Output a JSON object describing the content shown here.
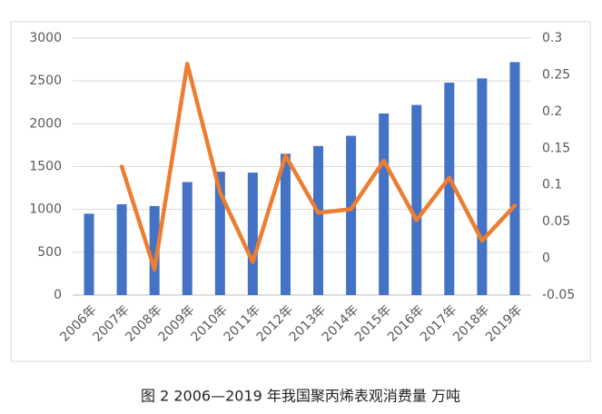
{
  "chart_data": {
    "type": "bar-line",
    "caption": "图 2  2006—2019 年我国聚丙烯表观消费量  万吨",
    "categories": [
      "2006年",
      "2007年",
      "2008年",
      "2009年",
      "2010年",
      "2011年",
      "2012年",
      "2013年",
      "2014年",
      "2015年",
      "2016年",
      "2017年",
      "2018年",
      "2019年"
    ],
    "series": [
      {
        "type": "bar",
        "color": "#4472c4",
        "values": [
          950,
          1060,
          1040,
          1320,
          1440,
          1430,
          1650,
          1740,
          1860,
          2120,
          2220,
          2480,
          2530,
          2720
        ]
      },
      {
        "type": "line",
        "color": "#ed7d31",
        "axis": "y2",
        "values": [
          null,
          0.125,
          -0.015,
          0.265,
          0.09,
          -0.005,
          0.14,
          0.062,
          0.067,
          0.133,
          0.052,
          0.11,
          0.024,
          0.072
        ]
      }
    ],
    "ylim": [
      0,
      3000
    ],
    "yticks": [
      0,
      500,
      1000,
      1500,
      2000,
      2500,
      3000
    ],
    "y2lim": [
      -0.05,
      0.3
    ],
    "y2ticks": [
      -0.05,
      0,
      0.05,
      0.1,
      0.15,
      0.2,
      0.25,
      0.3
    ],
    "grid": true
  }
}
